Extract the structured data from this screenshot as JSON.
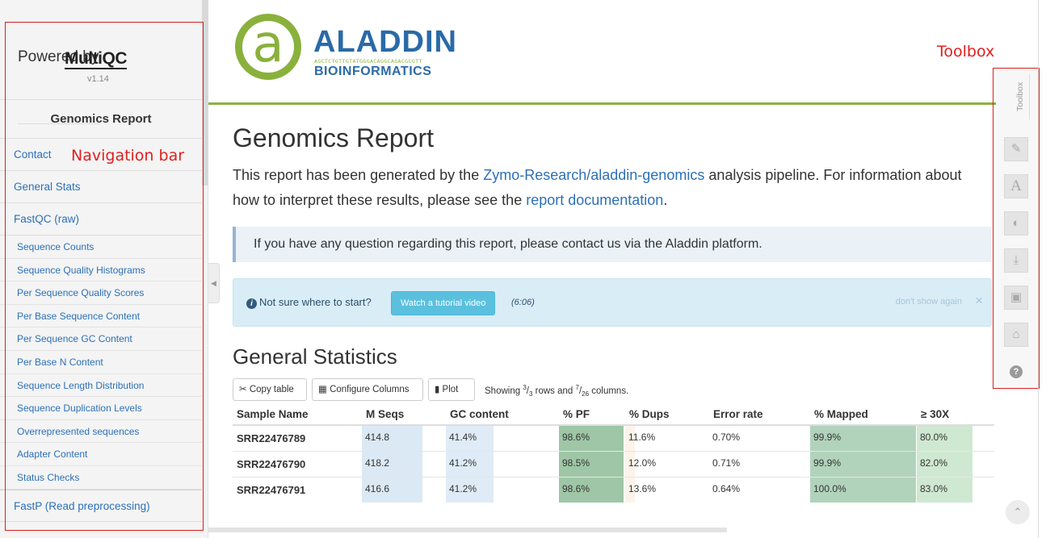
{
  "sidebar": {
    "powered_by": "Powered by",
    "logo_text": "MultiQC",
    "version": "v1.14",
    "report_title": "Genomics Report",
    "annotation": "Navigation bar",
    "items": [
      {
        "label": "Contact",
        "level": "top"
      },
      {
        "label": "General Stats",
        "level": "top"
      },
      {
        "label": "FastQC (raw)",
        "level": "top"
      },
      {
        "label": "Sequence Counts",
        "level": "sub"
      },
      {
        "label": "Sequence Quality Histograms",
        "level": "sub"
      },
      {
        "label": "Per Sequence Quality Scores",
        "level": "sub"
      },
      {
        "label": "Per Base Sequence Content",
        "level": "sub"
      },
      {
        "label": "Per Sequence GC Content",
        "level": "sub"
      },
      {
        "label": "Per Base N Content",
        "level": "sub"
      },
      {
        "label": "Sequence Length Distribution",
        "level": "sub"
      },
      {
        "label": "Sequence Duplication Levels",
        "level": "sub"
      },
      {
        "label": "Overrepresented sequences",
        "level": "sub"
      },
      {
        "label": "Adapter Content",
        "level": "sub"
      },
      {
        "label": "Status Checks",
        "level": "sub"
      },
      {
        "label": "FastP (Read preprocessing)",
        "level": "top"
      }
    ]
  },
  "header": {
    "brand_name": "ALADDIN",
    "brand_sub": "BIOINFORMATICS",
    "brand_seq": "AGCTCTGTTGTATGGGACAGGCAGACGCGTT",
    "logo_letter": "a"
  },
  "main": {
    "title": "Genomics Report",
    "intro_pre": "This report has been generated by the ",
    "intro_link1": "Zymo-Research/aladdin-genomics",
    "intro_mid": " analysis pipeline. For information about how to interpret these results, please see the ",
    "intro_link2": "report documentation",
    "intro_post": ".",
    "quote": "If you have any question regarding this report, please contact us via the Aladdin platform.",
    "alert": {
      "question": "Not sure where to start?",
      "button": "Watch a tutorial video",
      "duration": "(6:06)",
      "dismiss": "don't show again",
      "close": "×"
    },
    "section_title": "General Statistics",
    "table_toolbar": {
      "copy": "Copy table",
      "configure": "Configure Columns",
      "plot": "Plot",
      "showing_pre": "Showing ",
      "rows_shown": "3",
      "rows_total": "3",
      "rows_mid": " rows and ",
      "cols_shown": "7",
      "cols_total": "26",
      "cols_post": " columns."
    },
    "table": {
      "headers": [
        "Sample Name",
        "M Seqs",
        "GC content",
        "% PF",
        "% Dups",
        "Error rate",
        "% Mapped",
        "≥ 30X"
      ],
      "rows": [
        [
          "SRR22476789",
          "414.8",
          "41.4%",
          "98.6%",
          "11.6%",
          "0.70%",
          "99.9%",
          "80.0%"
        ],
        [
          "SRR22476790",
          "418.2",
          "41.2%",
          "98.5%",
          "12.0%",
          "0.71%",
          "99.9%",
          "82.0%"
        ],
        [
          "SRR22476791",
          "416.6",
          "41.2%",
          "98.6%",
          "13.6%",
          "0.64%",
          "100.0%",
          "83.0%"
        ]
      ]
    }
  },
  "toolbox": {
    "label": "Toolbox",
    "annotation": "Toolbox",
    "buttons": [
      {
        "name": "highlight-pin-icon",
        "glyph": "✎"
      },
      {
        "name": "rename-samples-icon",
        "glyph": "A"
      },
      {
        "name": "hide-samples-icon",
        "glyph": "◐"
      },
      {
        "name": "export-plots-icon",
        "glyph": "⤓"
      },
      {
        "name": "save-settings-icon",
        "glyph": "▣"
      },
      {
        "name": "help-tour-icon",
        "glyph": "⌂"
      },
      {
        "name": "about-help-icon",
        "glyph": "?"
      }
    ]
  },
  "scroll_top_glyph": "⌃",
  "colors": {
    "link": "#2c70b8",
    "accent_green": "#8db040",
    "annotation_red": "#d71e1e"
  }
}
